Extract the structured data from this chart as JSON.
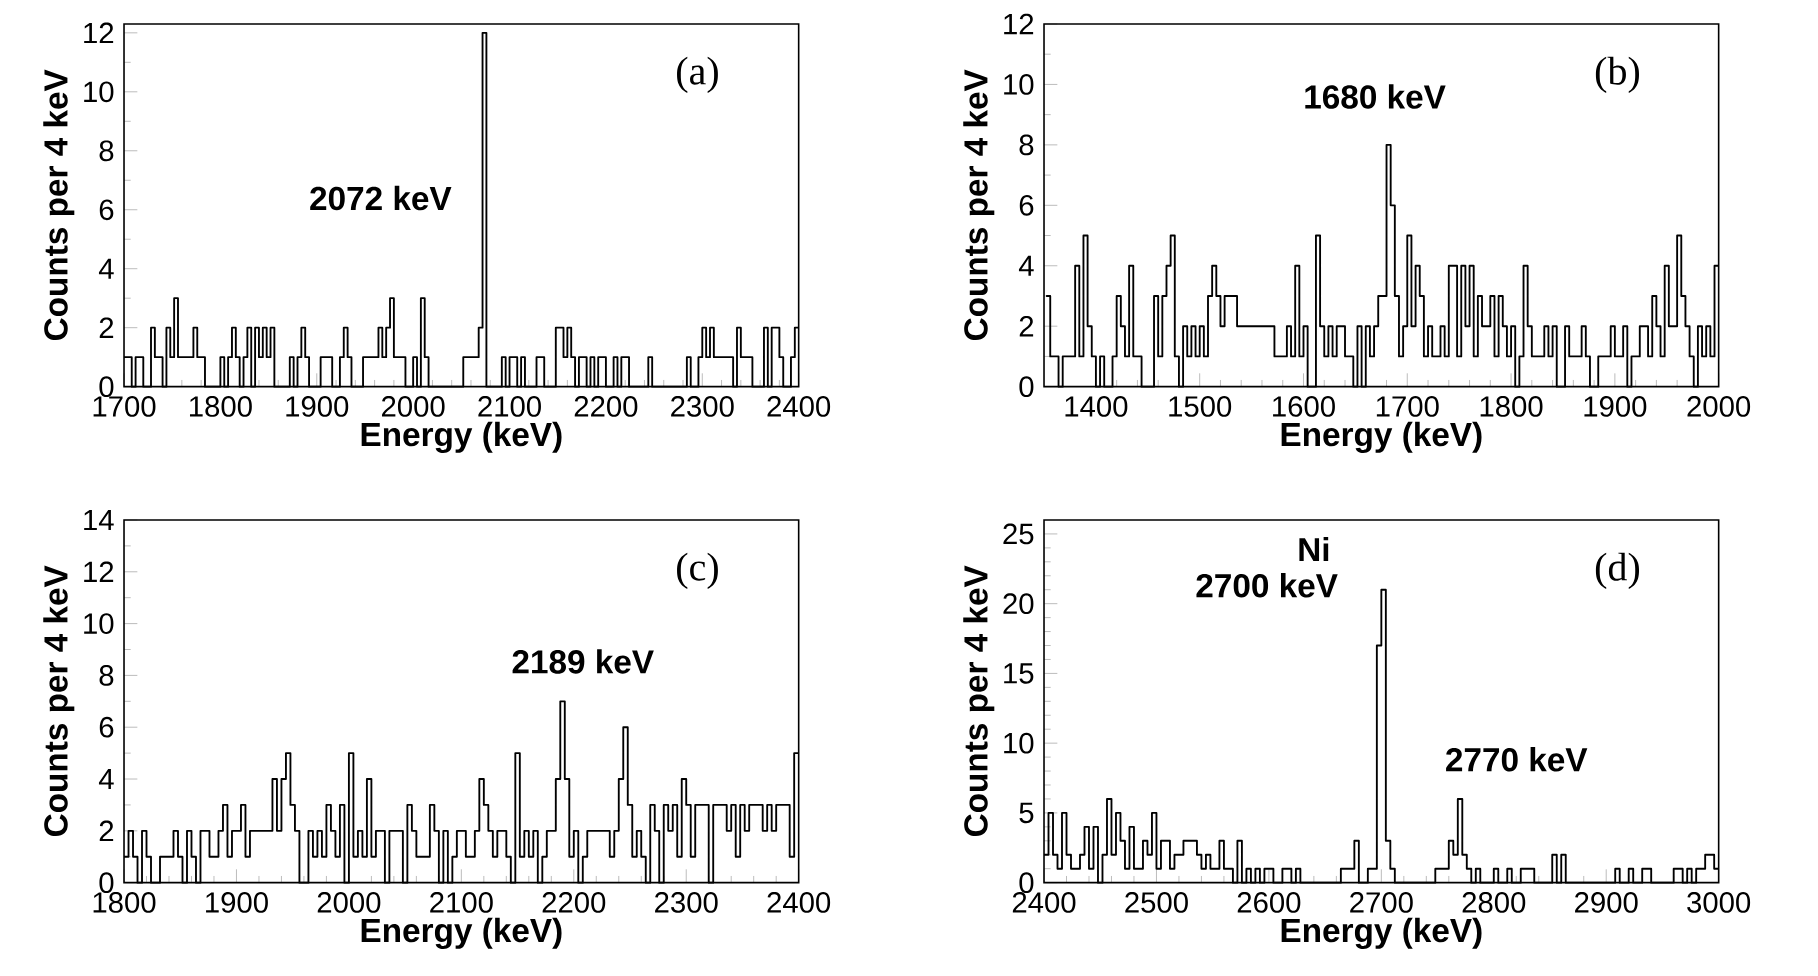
{
  "chart_data": [
    {
      "type": "histogram",
      "color": "#000000",
      "xlabel": "Energy (keV)",
      "ylabel": "Counts per 4 keV",
      "xlim": [
        1700,
        2400
      ],
      "xticks": [
        1700,
        1800,
        1900,
        2000,
        2100,
        2200,
        2300,
        2400
      ],
      "ylim": [
        0,
        12.3
      ],
      "yticks": [
        0,
        2,
        4,
        6,
        8,
        10,
        12
      ],
      "annotations": [
        "(a)",
        "2072 keV"
      ],
      "bins": [
        1700,
        1704,
        1708,
        1712,
        1716,
        1720,
        1724,
        1728,
        1732,
        1736,
        1740,
        1744,
        1748,
        1752,
        1756,
        1760,
        1764,
        1768,
        1772,
        1776,
        1780,
        1784,
        1788,
        1792,
        1796,
        1800,
        1804,
        1808,
        1812,
        1816,
        1820,
        1824,
        1828,
        1832,
        1836,
        1840,
        1844,
        1848,
        1852,
        1856,
        1860,
        1864,
        1868,
        1872,
        1876,
        1880,
        1884,
        1888,
        1892,
        1896,
        1900,
        1904,
        1908,
        1912,
        1916,
        1920,
        1924,
        1928,
        1932,
        1936,
        1940,
        1944,
        1948,
        1952,
        1956,
        1960,
        1964,
        1968,
        1972,
        1976,
        1980,
        1984,
        1988,
        1992,
        1996,
        2000,
        2004,
        2008,
        2012,
        2016,
        2020,
        2024,
        2028,
        2032,
        2036,
        2040,
        2044,
        2048,
        2052,
        2056,
        2060,
        2064,
        2068,
        2072,
        2076,
        2080,
        2084,
        2088,
        2092,
        2096,
        2100,
        2104,
        2108,
        2112,
        2116,
        2120,
        2124,
        2128,
        2132,
        2136,
        2140,
        2144,
        2148,
        2152,
        2156,
        2160,
        2164,
        2168,
        2172,
        2176,
        2180,
        2184,
        2188,
        2192,
        2196,
        2200,
        2204,
        2208,
        2212,
        2216,
        2220,
        2224,
        2228,
        2232,
        2236,
        2240,
        2244,
        2248,
        2252,
        2256,
        2260,
        2264,
        2268,
        2272,
        2276,
        2280,
        2284,
        2288,
        2292,
        2296,
        2300,
        2304,
        2308,
        2312,
        2316,
        2320,
        2324,
        2328,
        2332,
        2336,
        2340,
        2344,
        2348,
        2352,
        2356,
        2360,
        2364,
        2368,
        2372,
        2376,
        2380,
        2384,
        2388,
        2392,
        2396,
        2400
      ],
      "values": [
        1,
        1,
        0,
        1,
        1,
        0,
        0,
        2,
        1,
        1,
        0,
        2,
        1,
        3,
        1,
        1,
        1,
        1,
        2,
        1,
        1,
        0,
        0,
        0,
        0,
        1,
        0,
        1,
        2,
        1,
        0,
        1,
        2,
        0,
        2,
        1,
        2,
        1,
        2,
        0,
        0,
        0,
        0,
        1,
        0,
        1,
        2,
        1,
        0,
        0,
        0,
        1,
        1,
        1,
        0,
        0,
        1,
        2,
        1,
        0,
        0,
        0,
        1,
        1,
        1,
        1,
        2,
        1,
        2,
        3,
        1,
        1,
        1,
        0,
        0,
        1,
        0,
        3,
        1,
        0,
        0,
        0,
        0,
        0,
        0,
        0,
        0,
        0,
        1,
        1,
        1,
        1,
        2,
        12,
        0,
        0,
        0,
        0,
        1,
        0,
        1,
        1,
        0,
        1,
        0,
        0,
        0,
        1,
        1,
        0,
        0,
        0,
        2,
        2,
        1,
        2,
        1,
        0,
        1,
        1,
        0,
        1,
        0,
        1,
        1,
        0,
        0,
        1,
        0,
        1,
        1,
        0,
        0,
        0,
        0,
        0,
        1,
        0,
        0,
        0,
        0,
        0,
        0,
        0,
        0,
        0,
        1,
        0,
        0,
        1,
        2,
        1,
        2,
        1,
        1,
        1,
        1,
        1,
        0,
        2,
        1,
        1,
        1,
        0,
        0,
        0,
        2,
        0,
        2,
        2,
        1,
        0,
        0,
        1,
        2
      ]
    },
    {
      "type": "histogram",
      "color": "#000000",
      "xlabel": "Energy (keV)",
      "ylabel": "Counts per 4 keV",
      "xlim": [
        1350,
        2000
      ],
      "xticks": [
        1400,
        1500,
        1600,
        1700,
        1800,
        1900,
        2000
      ],
      "ylim": [
        0,
        12
      ],
      "yticks": [
        0,
        2,
        4,
        6,
        8,
        10,
        12
      ],
      "annotations": [
        "(b)",
        "1680 keV"
      ],
      "bins": [
        1352,
        1356,
        1360,
        1364,
        1368,
        1372,
        1376,
        1380,
        1384,
        1388,
        1392,
        1396,
        1400,
        1404,
        1408,
        1412,
        1416,
        1420,
        1424,
        1428,
        1432,
        1436,
        1440,
        1444,
        1448,
        1452,
        1456,
        1460,
        1464,
        1468,
        1472,
        1476,
        1480,
        1484,
        1488,
        1492,
        1496,
        1500,
        1504,
        1508,
        1512,
        1516,
        1520,
        1524,
        1528,
        1532,
        1536,
        1540,
        1544,
        1548,
        1552,
        1556,
        1560,
        1564,
        1568,
        1572,
        1576,
        1580,
        1584,
        1588,
        1592,
        1596,
        1600,
        1604,
        1608,
        1612,
        1616,
        1620,
        1624,
        1628,
        1632,
        1636,
        1640,
        1644,
        1648,
        1652,
        1656,
        1660,
        1664,
        1668,
        1672,
        1676,
        1680,
        1684,
        1688,
        1692,
        1696,
        1700,
        1704,
        1708,
        1712,
        1716,
        1720,
        1724,
        1728,
        1732,
        1736,
        1740,
        1744,
        1748,
        1752,
        1756,
        1760,
        1764,
        1768,
        1772,
        1776,
        1780,
        1784,
        1788,
        1792,
        1796,
        1800,
        1804,
        1808,
        1812,
        1816,
        1820,
        1824,
        1828,
        1832,
        1836,
        1840,
        1844,
        1848,
        1852,
        1856,
        1860,
        1864,
        1868,
        1872,
        1876,
        1880,
        1884,
        1888,
        1892,
        1896,
        1900,
        1904,
        1908,
        1912,
        1916,
        1920,
        1924,
        1928,
        1932,
        1936,
        1940,
        1944,
        1948,
        1952,
        1956,
        1960,
        1964,
        1968,
        1972,
        1976,
        1980,
        1984,
        1988,
        1992,
        1996,
        2000
      ],
      "values": [
        3,
        1,
        1,
        0,
        1,
        1,
        1,
        4,
        1,
        5,
        2,
        1,
        0,
        1,
        0,
        0,
        1,
        3,
        2,
        1,
        4,
        1,
        1,
        0,
        0,
        0,
        3,
        1,
        3,
        4,
        5,
        1,
        0,
        2,
        1,
        2,
        1,
        2,
        1,
        3,
        4,
        3,
        2,
        3,
        3,
        3,
        2,
        2,
        2,
        2,
        2,
        2,
        2,
        2,
        2,
        1,
        1,
        1,
        2,
        1,
        4,
        1,
        2,
        0,
        0,
        5,
        2,
        1,
        2,
        1,
        2,
        2,
        1,
        1,
        0,
        2,
        0,
        2,
        1,
        2,
        3,
        3,
        8,
        6,
        3,
        1,
        2,
        5,
        2,
        4,
        3,
        1,
        2,
        1,
        1,
        2,
        1,
        4,
        4,
        1,
        4,
        2,
        4,
        1,
        3,
        2,
        2,
        3,
        1,
        3,
        2,
        1,
        2,
        0,
        1,
        4,
        2,
        1,
        1,
        1,
        2,
        1,
        2,
        0,
        0,
        2,
        1,
        1,
        1,
        2,
        1,
        0,
        0,
        1,
        1,
        1,
        2,
        1,
        1,
        2,
        0,
        1,
        1,
        2,
        2,
        1,
        3,
        2,
        1,
        4,
        2,
        2,
        5,
        3,
        2,
        1,
        0,
        2,
        1,
        2,
        1,
        4
      ]
    },
    {
      "type": "histogram",
      "color": "#000000",
      "xlabel": "Energy (keV)",
      "ylabel": "Counts per 4 keV",
      "xlim": [
        1800,
        2400
      ],
      "xticks": [
        1800,
        1900,
        2000,
        2100,
        2200,
        2300,
        2400
      ],
      "ylim": [
        0,
        14
      ],
      "yticks": [
        0,
        2,
        4,
        6,
        8,
        10,
        12,
        14
      ],
      "annotations": [
        "(c)",
        "2189 keV"
      ],
      "bins": [
        1800,
        1804,
        1808,
        1812,
        1816,
        1820,
        1824,
        1828,
        1832,
        1836,
        1840,
        1844,
        1848,
        1852,
        1856,
        1860,
        1864,
        1868,
        1872,
        1876,
        1880,
        1884,
        1888,
        1892,
        1896,
        1900,
        1904,
        1908,
        1912,
        1916,
        1920,
        1924,
        1928,
        1932,
        1936,
        1940,
        1944,
        1948,
        1952,
        1956,
        1960,
        1964,
        1968,
        1972,
        1976,
        1980,
        1984,
        1988,
        1992,
        1996,
        2000,
        2004,
        2008,
        2012,
        2016,
        2020,
        2024,
        2028,
        2032,
        2036,
        2040,
        2044,
        2048,
        2052,
        2056,
        2060,
        2064,
        2068,
        2072,
        2076,
        2080,
        2084,
        2088,
        2092,
        2096,
        2100,
        2104,
        2108,
        2112,
        2116,
        2120,
        2124,
        2128,
        2132,
        2136,
        2140,
        2144,
        2148,
        2152,
        2156,
        2160,
        2164,
        2168,
        2172,
        2176,
        2180,
        2184,
        2188,
        2192,
        2196,
        2200,
        2204,
        2208,
        2212,
        2216,
        2220,
        2224,
        2228,
        2232,
        2236,
        2240,
        2244,
        2248,
        2252,
        2256,
        2260,
        2264,
        2268,
        2272,
        2276,
        2280,
        2284,
        2288,
        2292,
        2296,
        2300,
        2304,
        2308,
        2312,
        2316,
        2320,
        2324,
        2328,
        2332,
        2336,
        2340,
        2344,
        2348,
        2352,
        2356,
        2360,
        2364,
        2368,
        2372,
        2376,
        2380,
        2384,
        2388,
        2392,
        2396,
        2400
      ],
      "values": [
        1,
        2,
        1,
        0,
        2,
        1,
        0,
        0,
        1,
        1,
        1,
        2,
        1,
        0,
        2,
        1,
        0,
        2,
        2,
        1,
        1,
        2,
        3,
        1,
        2,
        2,
        3,
        1,
        2,
        2,
        2,
        2,
        2,
        4,
        2,
        4,
        5,
        3,
        2,
        0,
        0,
        2,
        1,
        2,
        1,
        3,
        2,
        1,
        3,
        0,
        5,
        1,
        2,
        1,
        4,
        1,
        2,
        2,
        0,
        2,
        2,
        2,
        0,
        3,
        2,
        1,
        1,
        1,
        3,
        2,
        0,
        2,
        0,
        1,
        2,
        2,
        1,
        1,
        2,
        4,
        3,
        2,
        1,
        2,
        2,
        1,
        0,
        5,
        1,
        2,
        1,
        2,
        0,
        1,
        2,
        2,
        4,
        7,
        4,
        1,
        2,
        0,
        1,
        2,
        2,
        2,
        2,
        2,
        1,
        2,
        4,
        6,
        3,
        1,
        2,
        1,
        0,
        3,
        2,
        0,
        3,
        2,
        3,
        1,
        4,
        3,
        1,
        3,
        3,
        3,
        0,
        3,
        3,
        3,
        2,
        3,
        1,
        3,
        2,
        3,
        3,
        3,
        2,
        3,
        2,
        3,
        3,
        3,
        1,
        5
      ]
    },
    {
      "type": "histogram",
      "color": "#000000",
      "xlabel": "Energy (keV)",
      "ylabel": "Counts per 4 keV",
      "xlim": [
        2400,
        3000
      ],
      "xticks": [
        2400,
        2500,
        2600,
        2700,
        2800,
        2900,
        3000
      ],
      "ylim": [
        0,
        26
      ],
      "yticks": [
        0,
        5,
        10,
        15,
        20,
        25
      ],
      "annotations": [
        "(d)",
        "Ni",
        "2700 keV",
        "2770 keV"
      ],
      "bins": [
        2400,
        2404,
        2408,
        2412,
        2416,
        2420,
        2424,
        2428,
        2432,
        2436,
        2440,
        2444,
        2448,
        2452,
        2456,
        2460,
        2464,
        2468,
        2472,
        2476,
        2480,
        2484,
        2488,
        2492,
        2496,
        2500,
        2504,
        2508,
        2512,
        2516,
        2520,
        2524,
        2528,
        2532,
        2536,
        2540,
        2544,
        2548,
        2552,
        2556,
        2560,
        2564,
        2568,
        2572,
        2576,
        2580,
        2584,
        2588,
        2592,
        2596,
        2600,
        2604,
        2608,
        2612,
        2616,
        2620,
        2624,
        2628,
        2632,
        2636,
        2640,
        2644,
        2648,
        2652,
        2656,
        2660,
        2664,
        2668,
        2672,
        2676,
        2680,
        2684,
        2688,
        2692,
        2696,
        2700,
        2704,
        2708,
        2712,
        2716,
        2720,
        2724,
        2728,
        2732,
        2736,
        2740,
        2744,
        2748,
        2752,
        2756,
        2760,
        2764,
        2768,
        2772,
        2776,
        2780,
        2784,
        2788,
        2792,
        2796,
        2800,
        2804,
        2808,
        2812,
        2816,
        2820,
        2824,
        2828,
        2832,
        2836,
        2840,
        2844,
        2848,
        2852,
        2856,
        2860,
        2864,
        2868,
        2872,
        2876,
        2880,
        2884,
        2888,
        2892,
        2896,
        2900,
        2904,
        2908,
        2912,
        2916,
        2920,
        2924,
        2928,
        2932,
        2936,
        2940,
        2944,
        2948,
        2952,
        2956,
        2960,
        2964,
        2968,
        2972,
        2976,
        2980,
        2984,
        2988,
        2992,
        2996,
        3000
      ],
      "values": [
        2,
        5,
        2,
        1,
        5,
        2,
        1,
        1,
        2,
        4,
        1,
        4,
        0,
        2,
        6,
        2,
        5,
        3,
        1,
        4,
        1,
        1,
        3,
        2,
        5,
        1,
        3,
        3,
        1,
        2,
        2,
        3,
        3,
        3,
        2,
        1,
        2,
        1,
        1,
        3,
        1,
        1,
        0,
        3,
        0,
        1,
        0,
        1,
        0,
        1,
        1,
        0,
        0,
        1,
        1,
        0,
        1,
        0,
        0,
        0,
        0,
        0,
        0,
        0,
        0,
        0,
        1,
        1,
        1,
        3,
        0,
        0,
        1,
        1,
        17,
        21,
        3,
        1,
        0,
        0,
        0,
        0,
        0,
        0,
        0,
        0,
        0,
        1,
        1,
        1,
        3,
        2,
        6,
        2,
        1,
        0,
        1,
        0,
        0,
        0,
        1,
        0,
        0,
        1,
        0,
        0,
        1,
        1,
        1,
        0,
        0,
        0,
        0,
        2,
        0,
        2,
        0,
        0,
        0,
        0,
        0,
        0,
        0,
        0,
        0,
        0,
        0,
        1,
        0,
        0,
        1,
        0,
        0,
        1,
        1,
        0,
        0,
        0,
        0,
        0,
        1,
        1,
        0,
        1,
        0,
        1,
        1,
        2,
        2,
        1
      ]
    }
  ]
}
